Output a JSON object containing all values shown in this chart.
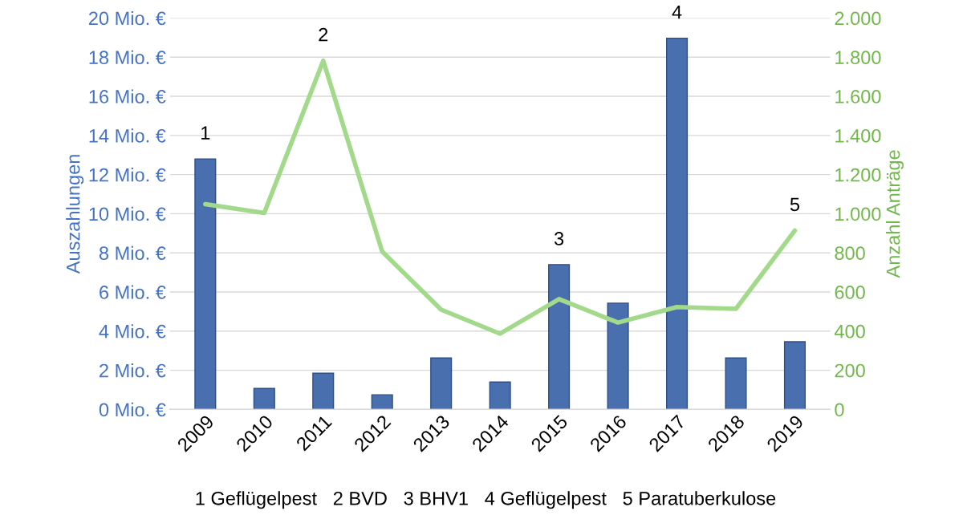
{
  "chart_data": {
    "type": "bar",
    "ylabel": "Auszahlungen",
    "y2label": "Anzahl Anträge",
    "categories": [
      "2009",
      "2010",
      "2011",
      "2012",
      "2013",
      "2014",
      "2015",
      "2016",
      "2017",
      "2018",
      "2019"
    ],
    "series": [
      {
        "color": "#4a6fae",
        "values": [
          12.8,
          1.07,
          1.85,
          0.75,
          2.63,
          1.4,
          7.4,
          5.43,
          18.97,
          2.63,
          3.46
        ]
      },
      {
        "type": "line",
        "axis": "y2",
        "color": "#a3d98b",
        "values": [
          1049,
          1004,
          1782,
          807,
          510,
          387,
          564,
          444,
          523,
          514,
          914
        ]
      }
    ],
    "ylim": [
      0,
      20
    ],
    "yticks": [
      {
        "value": 0,
        "label": "0 Mio. €"
      },
      {
        "value": 2,
        "label": "2 Mio. €"
      },
      {
        "value": 4,
        "label": "4 Mio. €"
      },
      {
        "value": 6,
        "label": "6 Mio. €"
      },
      {
        "value": 8,
        "label": "8 Mio. €"
      },
      {
        "value": 10,
        "label": "10 Mio. €"
      },
      {
        "value": 12,
        "label": "12 Mio. €"
      },
      {
        "value": 14,
        "label": "14 Mio. €"
      },
      {
        "value": 16,
        "label": "16 Mio. €"
      },
      {
        "value": 18,
        "label": "18 Mio. €"
      },
      {
        "value": 20,
        "label": "20 Mio. €"
      }
    ],
    "y2lim": [
      0,
      2000
    ],
    "y2ticks": [
      0,
      200,
      400,
      600,
      800,
      {
        "value": 1000,
        "label": "1.000"
      },
      {
        "value": 1200,
        "label": "1.200"
      },
      {
        "value": 1400,
        "label": "1.400"
      },
      {
        "value": 1600,
        "label": "1.600"
      },
      {
        "value": 1800,
        "label": "1.800"
      },
      {
        "value": 2000,
        "label": "2.000"
      }
    ],
    "grid": "y",
    "marker": "none",
    "line_style": "solid",
    "annotations": [
      {
        "text": "1",
        "x": "2009",
        "y": 12.8
      },
      {
        "text": "2",
        "x": "2011",
        "y": 17.82
      },
      {
        "text": "3",
        "x": "2015",
        "y": 7.4
      },
      {
        "text": "4",
        "x": "2017",
        "y": 18.97
      },
      {
        "text": "5",
        "x": "2019",
        "y": 9.14
      },
      "1 Geflügelpest   2 BVD   3 BHV1   4 Geflügelpest   5 Paratuberkulose"
    ]
  }
}
